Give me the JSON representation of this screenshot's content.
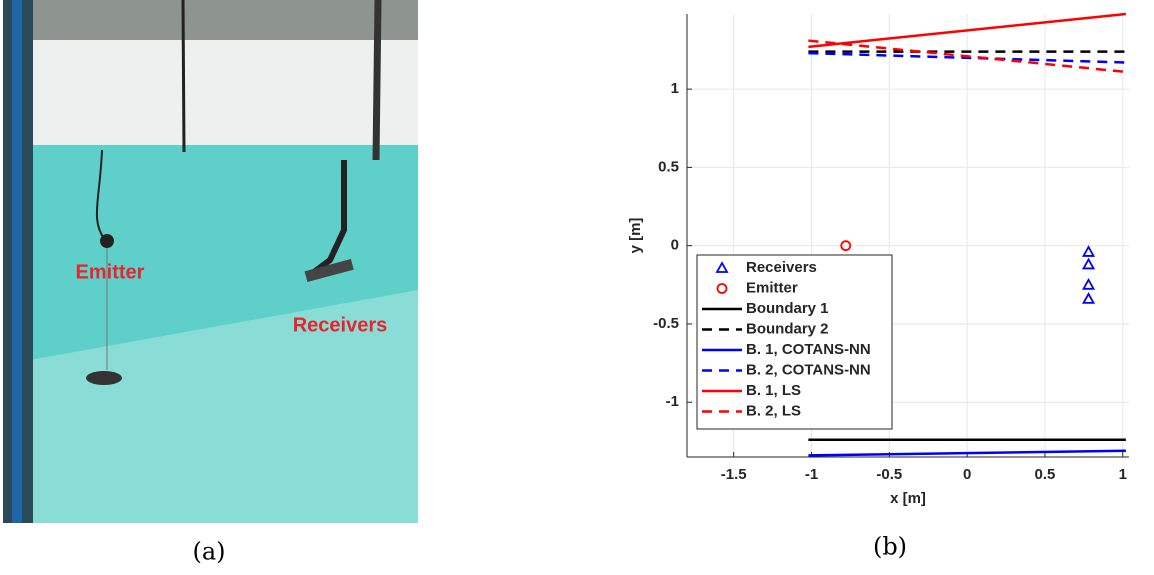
{
  "photo": {
    "labels": [
      "Emitter",
      "Receivers"
    ],
    "caption": "(a)"
  },
  "chart_data": {
    "type": "line",
    "caption": "(b)",
    "xlabel": "x [m]",
    "ylabel": "y [m]",
    "xlim": [
      -1.8,
      1.04
    ],
    "ylim": [
      -1.35,
      1.48
    ],
    "xticks": [
      -1.5,
      -1,
      -0.5,
      0,
      0.5,
      1
    ],
    "yticks": [
      -1,
      -0.5,
      0,
      0.5,
      1
    ],
    "grid": true,
    "legend": "lower left",
    "series": [
      {
        "name": "Receivers",
        "color": "#0000ff",
        "marker": "triangle",
        "linestyle": "none",
        "x": [
          0.78,
          0.78,
          0.78,
          0.78
        ],
        "values": [
          -0.04,
          -0.12,
          -0.25,
          -0.34
        ]
      },
      {
        "name": "Emitter",
        "color": "#ff0000",
        "marker": "circle",
        "linestyle": "none",
        "x": [
          -0.78
        ],
        "values": [
          0
        ]
      },
      {
        "name": "Boundary 1",
        "color": "#000000",
        "linestyle": "solid",
        "x": [
          -1.02,
          1.02
        ],
        "values": [
          -1.24,
          -1.24
        ]
      },
      {
        "name": "Boundary 2",
        "color": "#000000",
        "linestyle": "dashed",
        "x": [
          -1.02,
          1.02
        ],
        "values": [
          1.24,
          1.24
        ]
      },
      {
        "name": "B. 1, COTANS-NN",
        "color": "#0000ff",
        "linestyle": "solid",
        "x": [
          -1.02,
          1.02
        ],
        "values": [
          -1.34,
          -1.31
        ]
      },
      {
        "name": "B. 2, COTANS-NN",
        "color": "#0000ff",
        "linestyle": "dashed",
        "x": [
          -1.02,
          1.02
        ],
        "values": [
          1.23,
          1.17
        ]
      },
      {
        "name": "B. 1, LS",
        "color": "#ff0000",
        "linestyle": "solid",
        "x": [
          -1.02,
          1.02
        ],
        "values": [
          1.27,
          1.48
        ]
      },
      {
        "name": "B. 2, LS",
        "color": "#ff0000",
        "linestyle": "dashed",
        "x": [
          -1.02,
          1.02
        ],
        "values": [
          1.31,
          1.11
        ]
      }
    ]
  }
}
